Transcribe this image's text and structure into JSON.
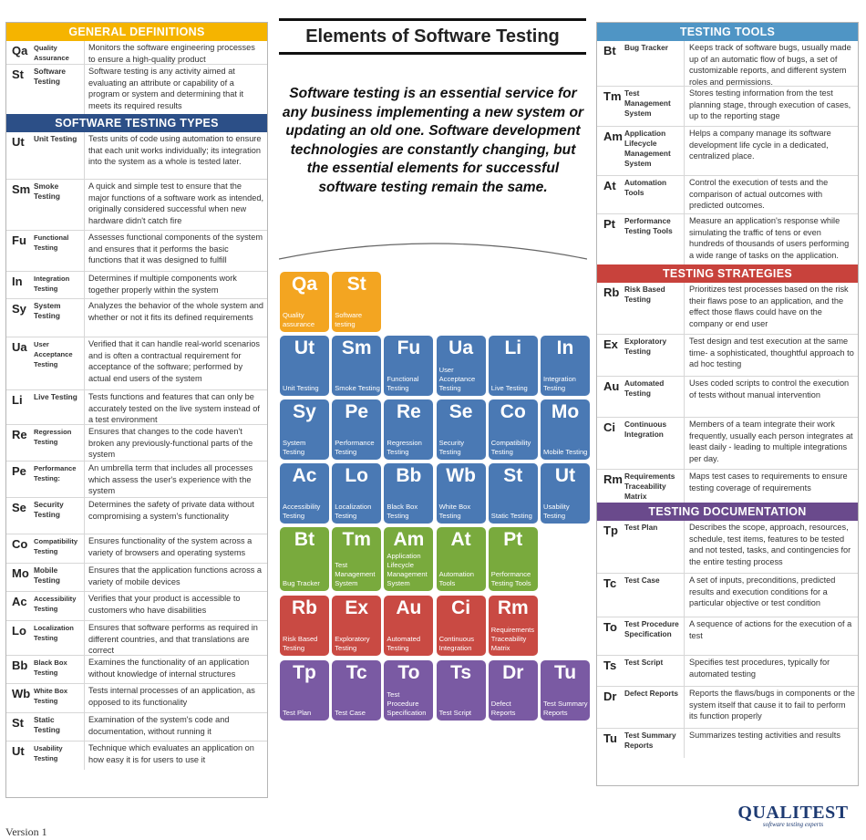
{
  "title": "Elements of Software Testing",
  "intro": "Software testing is an essential service for any business implementing a new system or updating an old one. Software development technologies are constantly changing, but the essential elements for successful software testing remain the same.",
  "version": "Version 1",
  "logo": {
    "name": "QUALITEST",
    "tagline": "software testing experts"
  },
  "colors": {
    "general": "#f5b400",
    "types": "#2c4f87",
    "tools": "#4f95c5",
    "strategies": "#c8423c",
    "documentation": "#6a4a8c",
    "tile_orange": "#f3a521",
    "tile_blue": "#4a79b4",
    "tile_green": "#79aa3d",
    "tile_red": "#c94a43",
    "tile_purple": "#7a5aa3"
  },
  "general": {
    "header": "GENERAL DEFINITIONS",
    "rows": [
      {
        "sym": "Qa",
        "name": "Quality Assurance",
        "desc": "Monitors the software engineering processes to ensure a high-quality product"
      },
      {
        "sym": "St",
        "name": "Software Testing",
        "desc": "Software testing is any activity aimed at evaluating an attribute or capability of a program or system and determining that it meets its required results"
      }
    ]
  },
  "types": {
    "header": "SOFTWARE TESTING TYPES",
    "rows": [
      {
        "sym": "Ut",
        "name": "Unit Testing",
        "desc": "Tests units of code using automation to ensure that each unit works individually; its integration into the system as a whole is tested later."
      },
      {
        "sym": "Sm",
        "name": "Smoke Testing",
        "desc": "A quick and simple test to ensure that the major functions of a software work as intended, originally considered successful when new hardware didn't catch fire"
      },
      {
        "sym": "Fu",
        "name": "Functional Testing",
        "desc": "Assesses functional components of the system and ensures that it performs the basic functions that it was designed to fulfill"
      },
      {
        "sym": "In",
        "name": "Integration Testing",
        "desc": "Determines if multiple components work together properly within the system"
      },
      {
        "sym": "Sy",
        "name": "System Testing",
        "desc": "Analyzes the behavior of the whole system and whether or not it fits its defined requirements"
      },
      {
        "sym": "Ua",
        "name": "User Acceptance Testing",
        "desc": "Verified that it can handle real-world scenarios and is often a contractual requirement for acceptance of the software; performed by actual end users of the system"
      },
      {
        "sym": "Li",
        "name": "Live Testing",
        "desc": "Tests functions and features that can only be accurately tested on the live system instead of a test environment"
      },
      {
        "sym": "Re",
        "name": "Regression Testing",
        "desc": "Ensures that changes to the code haven't broken any previously-functional parts of the system"
      },
      {
        "sym": "Pe",
        "name": "Performance Testing:",
        "desc": "An umbrella term that includes all processes which assess the user's experience with the system"
      },
      {
        "sym": "Se",
        "name": "Security Testing",
        "desc": " Determines the safety of private data without compromising a system's functionality"
      },
      {
        "sym": "Co",
        "name": "Compatibility Testing",
        "desc": "Ensures functionality of the system across a variety of browsers and operating systems"
      },
      {
        "sym": "Mo",
        "name": "Mobile Testing",
        "desc": "Ensures that the application functions across a variety of mobile devices"
      },
      {
        "sym": "Ac",
        "name": "Accessibility Testing",
        "desc": "Verifies that your product is accessible to customers who have disabilities"
      },
      {
        "sym": "Lo",
        "name": "Localization Testing",
        "desc": "Ensures that software performs as required in different countries, and that translations are correct"
      },
      {
        "sym": "Bb",
        "name": "Black Box Testing",
        "desc": "Examines the functionality of an application without knowledge of internal structures"
      },
      {
        "sym": "Wb",
        "name": "White Box Testing",
        "desc": "Tests internal processes of an application, as opposed to its functionality"
      },
      {
        "sym": "St",
        "name": "Static Testing",
        "desc": "Examination of the system's code and documentation, without running it"
      },
      {
        "sym": "Ut",
        "name": "Usability Testing",
        "desc": "Technique which evaluates an application on how easy it is for users to use it"
      }
    ]
  },
  "tools": {
    "header": "TESTING TOOLS",
    "rows": [
      {
        "sym": "Bt",
        "name": "Bug Tracker",
        "desc": "Keeps track of software bugs, usually made up of an automatic flow of bugs, a set of customizable reports, and different system roles and permissions."
      },
      {
        "sym": "Tm",
        "name": "Test Management System",
        "desc": "Stores testing information from the test planning stage, through execution of cases, up to the reporting stage"
      },
      {
        "sym": "Am",
        "name": "Application Lifecycle Management System",
        "desc": "Helps a company manage its software development life cycle in a dedicated, centralized place."
      },
      {
        "sym": "At",
        "name": "Automation Tools",
        "desc": "Control the execution of tests and the comparison of actual outcomes with predicted outcomes."
      },
      {
        "sym": "Pt",
        "name": "Performance Testing Tools",
        "desc": "Measure an application's response while simulating the traffic of tens or even hundreds of thousands of users performing a wide range of tasks on the application."
      }
    ]
  },
  "strategies": {
    "header": "TESTING STRATEGIES",
    "rows": [
      {
        "sym": "Rb",
        "name": "Risk Based Testing",
        "desc": "Prioritizes test processes based on the risk their flaws pose to an application, and the effect those flaws could have on the company or end user"
      },
      {
        "sym": "Ex",
        "name": "Exploratory Testing",
        "desc": "Test design and test execution at the same time- a sophisticated, thoughtful approach to ad hoc testing"
      },
      {
        "sym": "Au",
        "name": "Automated Testing",
        "desc": "Uses coded scripts to control the execution of tests without manual intervention"
      },
      {
        "sym": "Ci",
        "name": "Continuous Integration",
        "desc": "Members of a team integrate their work frequently, usually each person integrates at least daily - leading to multiple integrations per day."
      },
      {
        "sym": "Rm",
        "name": "Requirements Traceability Matrix",
        "desc": "Maps test cases to requirements to ensure testing coverage of requirements"
      }
    ]
  },
  "documentation": {
    "header": "TESTING DOCUMENTATION",
    "rows": [
      {
        "sym": "Tp",
        "name": "Test Plan",
        "desc": "Describes the scope, approach, resources, schedule, test items, features to be tested and not tested, tasks, and contingencies for the entire testing process"
      },
      {
        "sym": "Tc",
        "name": "Test Case",
        "desc": "A set of inputs, preconditions, predicted results and execution conditions for a particular objective or test condition"
      },
      {
        "sym": "To",
        "name": "Test Procedure Specification",
        "desc": "A sequence of actions for the execution of a test"
      },
      {
        "sym": "Ts",
        "name": "Test Script",
        "desc": "Specifies test procedures, typically for automated testing"
      },
      {
        "sym": "Dr",
        "name": "Defect Reports",
        "desc": "Reports the flaws/bugs in components or the system itself that cause it to fail to perform its function properly"
      },
      {
        "sym": "Tu",
        "name": "Test Summary Reports",
        "desc": "Summarizes testing activities and results"
      }
    ]
  },
  "tiles": [
    {
      "sym": "Qa",
      "name": "Quality assurance",
      "color": "orange"
    },
    {
      "sym": "St",
      "name": "Software testing",
      "color": "orange"
    },
    {
      "sym": "Ut",
      "name": "Unit Testing",
      "color": "blue"
    },
    {
      "sym": "Sm",
      "name": "Smoke Testing",
      "color": "blue"
    },
    {
      "sym": "Fu",
      "name": "Functional Testing",
      "color": "blue"
    },
    {
      "sym": "Ua",
      "name": "User Acceptance Testing",
      "color": "blue"
    },
    {
      "sym": "Li",
      "name": "Live Testing",
      "color": "blue"
    },
    {
      "sym": "In",
      "name": "Integration Testing",
      "color": "blue"
    },
    {
      "sym": "Sy",
      "name": "System Testing",
      "color": "blue"
    },
    {
      "sym": "Pe",
      "name": "Performance Testing",
      "color": "blue"
    },
    {
      "sym": "Re",
      "name": "Regression Testing",
      "color": "blue"
    },
    {
      "sym": "Se",
      "name": "Security Testing",
      "color": "blue"
    },
    {
      "sym": "Co",
      "name": "Compatibility Testing",
      "color": "blue"
    },
    {
      "sym": "Mo",
      "name": "Mobile Testing",
      "color": "blue"
    },
    {
      "sym": "Ac",
      "name": "Accessibility Testing",
      "color": "blue"
    },
    {
      "sym": "Lo",
      "name": "Localization Testing",
      "color": "blue"
    },
    {
      "sym": "Bb",
      "name": "Black Box Testing",
      "color": "blue"
    },
    {
      "sym": "Wb",
      "name": "White Box Testing",
      "color": "blue"
    },
    {
      "sym": "St",
      "name": "Static Testing",
      "color": "blue"
    },
    {
      "sym": "Ut",
      "name": "Usability Testing",
      "color": "blue"
    },
    {
      "sym": "Bt",
      "name": "Bug Tracker",
      "color": "green"
    },
    {
      "sym": "Tm",
      "name": "Test Management System",
      "color": "green"
    },
    {
      "sym": "Am",
      "name": "Application Lifecycle Management System",
      "color": "green"
    },
    {
      "sym": "At",
      "name": "Automation Tools",
      "color": "green"
    },
    {
      "sym": "Pt",
      "name": "Performance Testing Tools",
      "color": "green"
    },
    {
      "sym": "Rb",
      "name": "Risk Based Testing",
      "color": "red"
    },
    {
      "sym": "Ex",
      "name": "Exploratory Testing",
      "color": "red"
    },
    {
      "sym": "Au",
      "name": "Automated Testing",
      "color": "red"
    },
    {
      "sym": "Ci",
      "name": "Continuous Integration",
      "color": "red"
    },
    {
      "sym": "Rm",
      "name": "Requirements Traceability Matrix",
      "color": "red"
    },
    {
      "sym": "Tp",
      "name": "Test Plan",
      "color": "purple"
    },
    {
      "sym": "Tc",
      "name": "Test Case",
      "color": "purple"
    },
    {
      "sym": "To",
      "name": "Test Procedure Specification",
      "color": "purple"
    },
    {
      "sym": "Ts",
      "name": "Test Script",
      "color": "purple"
    },
    {
      "sym": "Dr",
      "name": "Defect Reports",
      "color": "purple"
    },
    {
      "sym": "Tu",
      "name": "Test Summary Reports",
      "color": "purple"
    }
  ]
}
